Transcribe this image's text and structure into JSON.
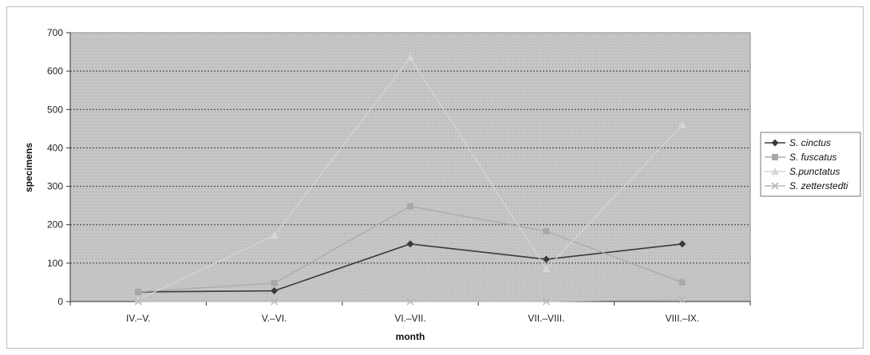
{
  "chart_data": {
    "type": "line",
    "categories": [
      "IV.–V.",
      "V.–VI.",
      "VI.–VII.",
      "VII.–VIII.",
      "VIII.–IX."
    ],
    "xlabel": "month",
    "ylabel": "specimens",
    "ylim": [
      0,
      700
    ],
    "yticks": [
      0,
      100,
      200,
      300,
      400,
      500,
      600,
      700
    ],
    "grid": true,
    "legend_position": "right",
    "series": [
      {
        "name": "S. cinctus",
        "values": [
          25,
          28,
          150,
          110,
          150
        ],
        "color": "#3a3a3a",
        "marker": "diamond"
      },
      {
        "name": "S. fuscatus",
        "values": [
          25,
          48,
          248,
          183,
          50
        ],
        "color": "#a8a8a8",
        "marker": "square"
      },
      {
        "name": "S.punctatus",
        "values": [
          5,
          172,
          635,
          85,
          460
        ],
        "color": "#d6d6d6",
        "marker": "triangle"
      },
      {
        "name": "S. zetterstedti",
        "values": [
          0,
          0,
          0,
          0,
          5
        ],
        "color": "#b8b8b8",
        "marker": "x"
      }
    ]
  }
}
